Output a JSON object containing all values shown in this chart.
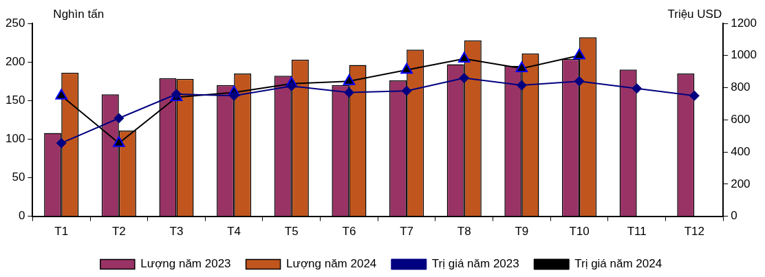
{
  "chart_data": {
    "type": "bar",
    "categories": [
      "T1",
      "T2",
      "T3",
      "T4",
      "T5",
      "T6",
      "T7",
      "T8",
      "T9",
      "T10",
      "T11",
      "T12"
    ],
    "ylabel": "Nghìn tấn",
    "y2label": "Triệu USD",
    "series": [
      {
        "name": "Lượng năm 2023",
        "color": "#993366",
        "values": [
          108,
          158,
          179,
          170,
          182,
          170,
          176,
          197,
          195,
          204,
          190,
          185
        ]
      },
      {
        "name": "Lượng năm 2024",
        "color": "#c0561e",
        "values": [
          186,
          111,
          178,
          185,
          203,
          196,
          216,
          228,
          211,
          232,
          null,
          null
        ]
      },
      {
        "name": "Trị giá năm 2023",
        "type": "line",
        "axis": "y2",
        "marker": "diamond",
        "color": "#000080",
        "values": [
          455,
          610,
          760,
          750,
          810,
          770,
          780,
          860,
          815,
          840,
          795,
          750
        ]
      },
      {
        "name": "Trị giá năm 2024",
        "type": "line",
        "axis": "y2",
        "marker": "triangle",
        "color": "#000000",
        "values": [
          750,
          455,
          740,
          770,
          825,
          840,
          910,
          980,
          920,
          1000,
          null,
          null
        ]
      }
    ],
    "ylim": [
      0,
      250
    ],
    "yticks": [
      0,
      50,
      100,
      150,
      200,
      250
    ],
    "y2lim": [
      0,
      1200
    ],
    "y2ticks": [
      0,
      200,
      400,
      600,
      800,
      1000,
      1200
    ],
    "grid": false,
    "legend": "bottom",
    "line_style": "solid"
  }
}
